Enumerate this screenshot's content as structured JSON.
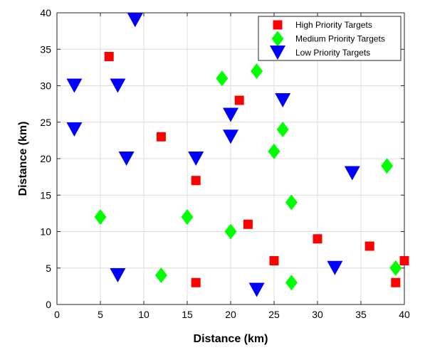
{
  "chart_data": {
    "type": "scatter",
    "title": "",
    "xlabel": "Distance (km)",
    "ylabel": "Distance (km)",
    "xlim": [
      0,
      40
    ],
    "ylim": [
      0,
      40
    ],
    "xticks": [
      0,
      5,
      10,
      15,
      20,
      25,
      30,
      35,
      40
    ],
    "yticks": [
      0,
      5,
      10,
      15,
      20,
      25,
      30,
      35,
      40
    ],
    "grid": true,
    "legend_position": "top-right",
    "series": [
      {
        "name": "High Priority Targets",
        "marker": "square",
        "color": "#ff0000",
        "points": [
          [
            6,
            34
          ],
          [
            12,
            23
          ],
          [
            16,
            17
          ],
          [
            16,
            3
          ],
          [
            21,
            28
          ],
          [
            22,
            11
          ],
          [
            25,
            6
          ],
          [
            30,
            9
          ],
          [
            36,
            8
          ],
          [
            39,
            3
          ],
          [
            40,
            6
          ]
        ]
      },
      {
        "name": "Medium Priority Targets",
        "marker": "diamond",
        "color": "#00ff00",
        "points": [
          [
            5,
            12
          ],
          [
            12,
            4
          ],
          [
            15,
            12
          ],
          [
            19,
            31
          ],
          [
            20,
            10
          ],
          [
            23,
            32
          ],
          [
            25,
            21
          ],
          [
            26,
            24
          ],
          [
            27,
            14
          ],
          [
            27,
            3
          ],
          [
            38,
            19
          ],
          [
            39,
            5
          ]
        ]
      },
      {
        "name": "Low Priority Targets",
        "marker": "triangle-down",
        "color": "#0000ff",
        "points": [
          [
            2,
            30
          ],
          [
            2,
            24
          ],
          [
            7,
            30
          ],
          [
            7,
            4
          ],
          [
            8,
            20
          ],
          [
            9,
            39
          ],
          [
            16,
            20
          ],
          [
            20,
            26
          ],
          [
            20,
            23
          ],
          [
            23,
            2
          ],
          [
            26,
            28
          ],
          [
            32,
            5
          ],
          [
            34,
            18
          ]
        ]
      }
    ]
  }
}
